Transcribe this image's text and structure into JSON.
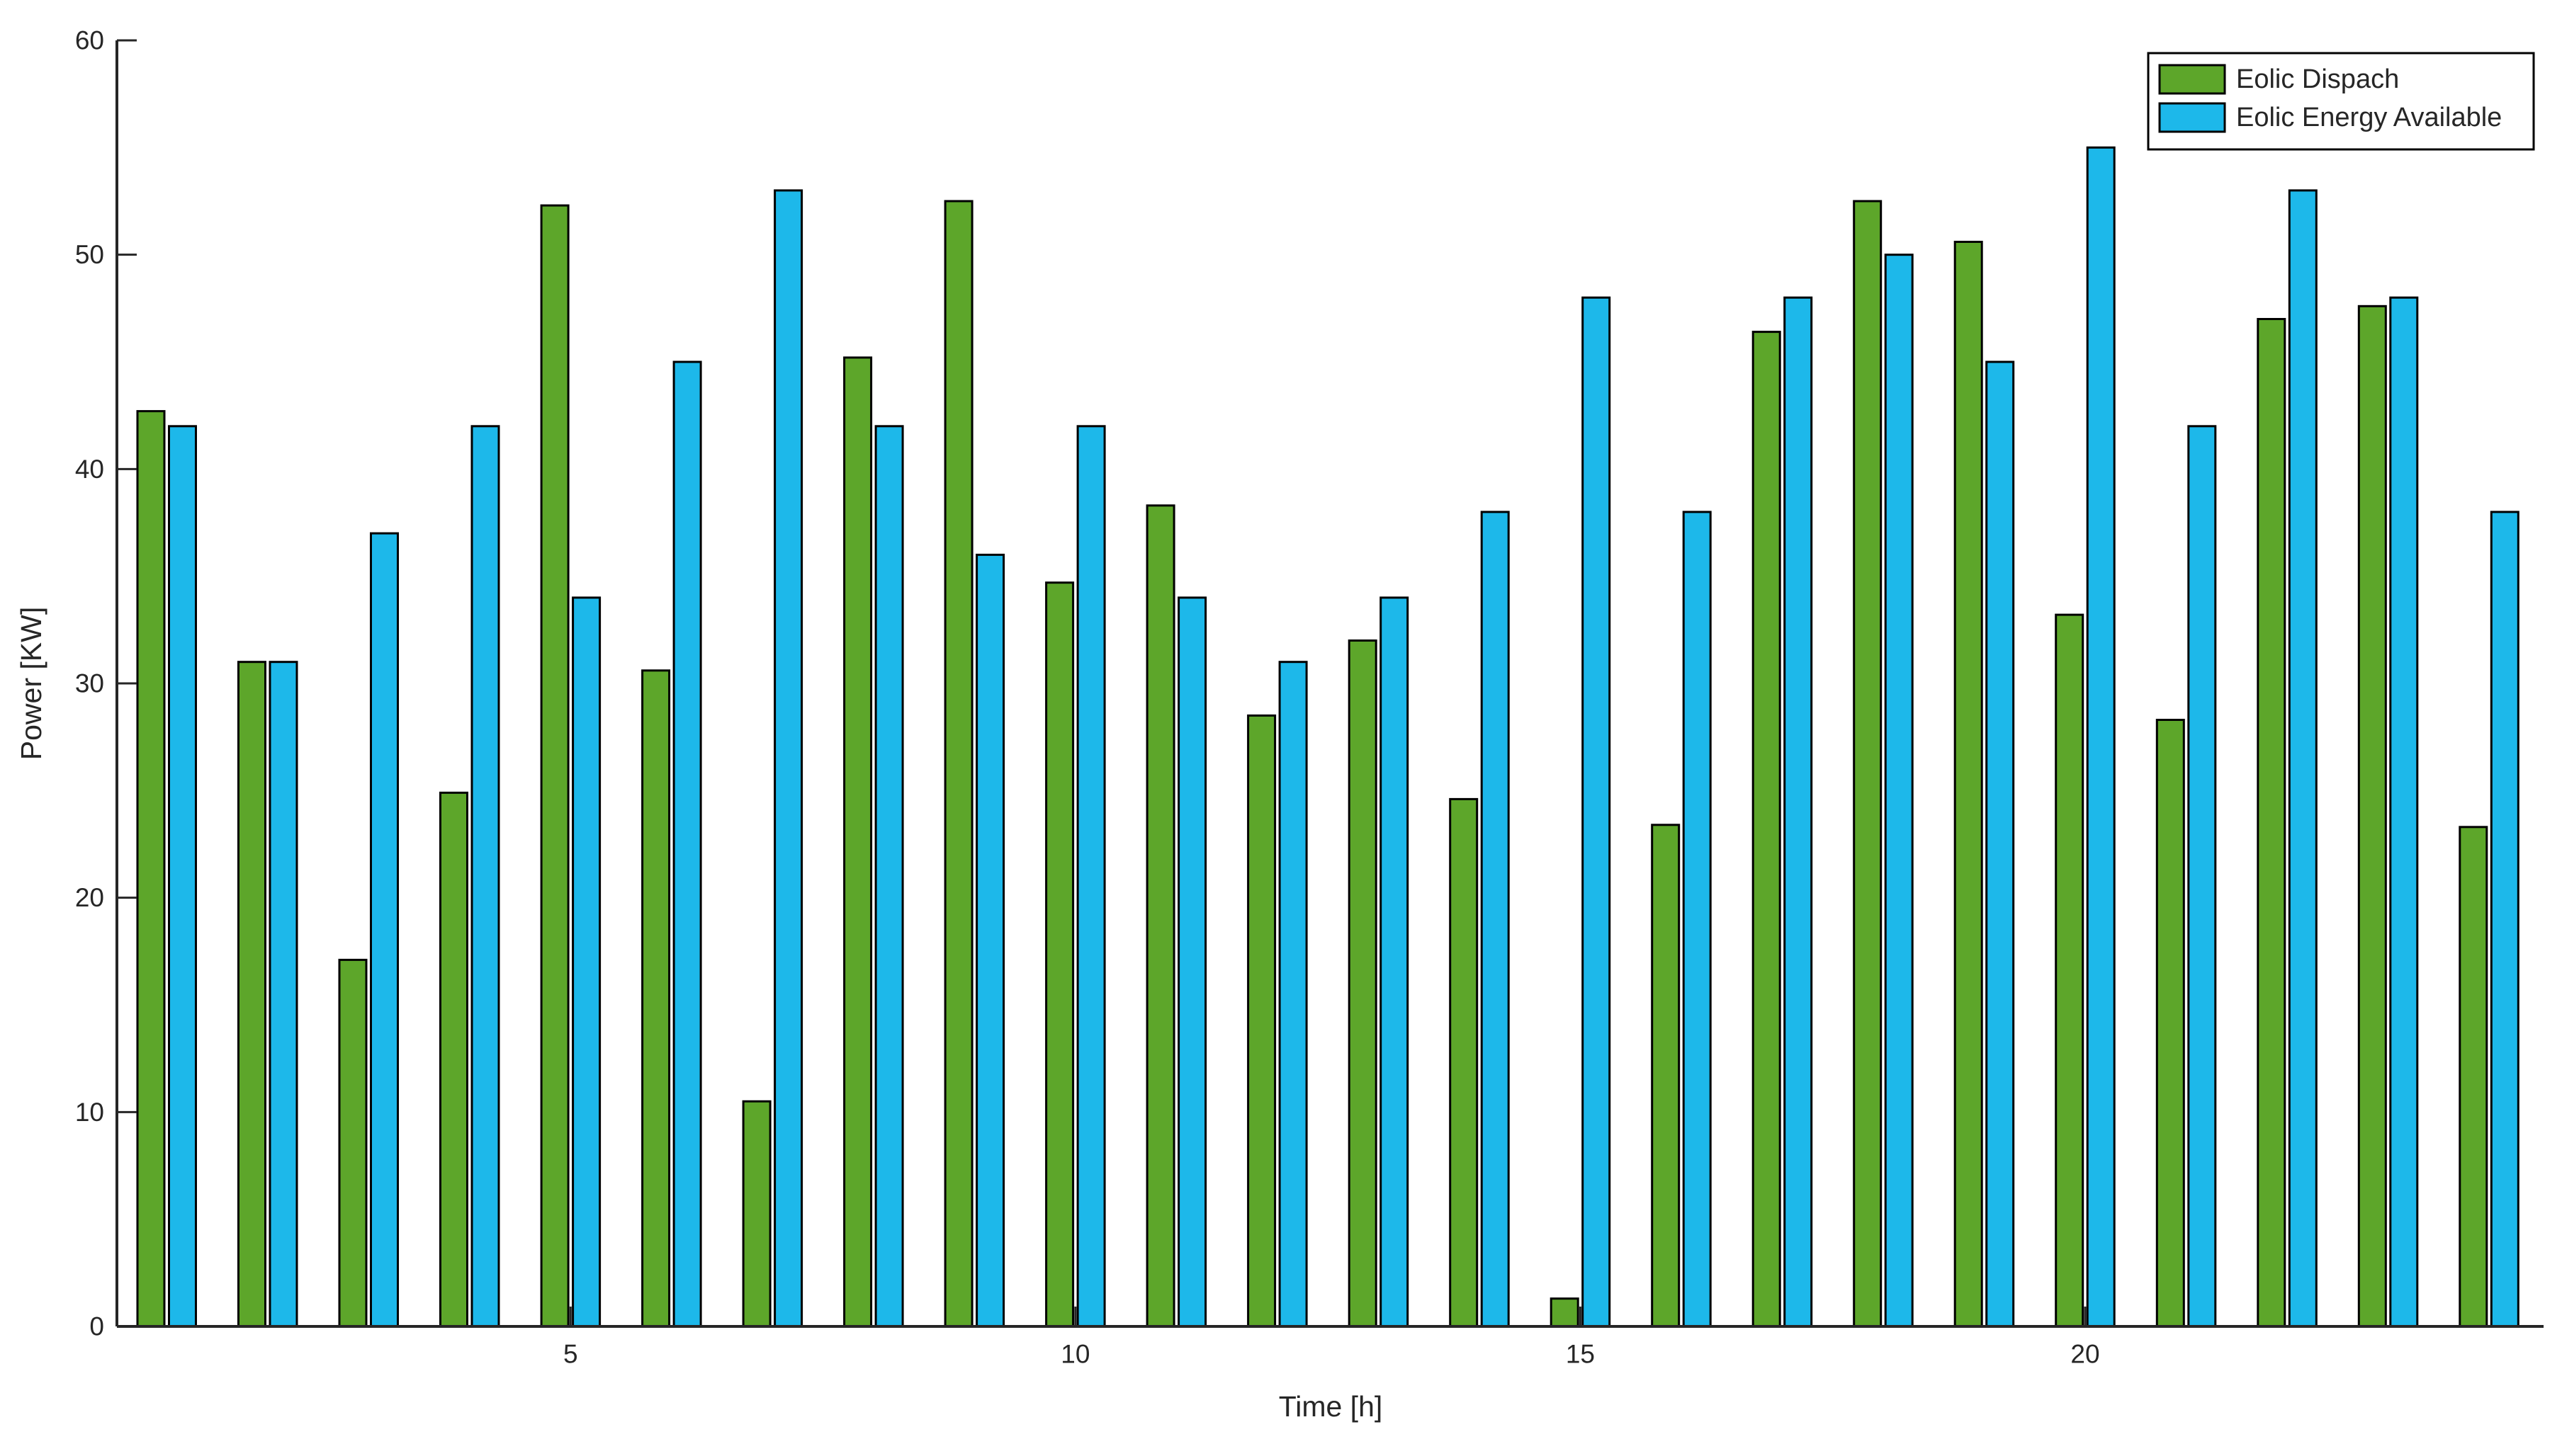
{
  "chart_data": {
    "type": "bar",
    "title": "",
    "xlabel": "Time [h]",
    "ylabel": "Power [KW]",
    "x": [
      1,
      2,
      3,
      4,
      5,
      6,
      7,
      8,
      9,
      10,
      11,
      12,
      13,
      14,
      15,
      16,
      17,
      18,
      19,
      20,
      21,
      22,
      23,
      24
    ],
    "series": [
      {
        "name": "Eolic Dispach",
        "color": "#5da62a",
        "values": [
          42.7,
          31,
          17.1,
          24.9,
          52.3,
          30.6,
          10.5,
          45.2,
          52.5,
          34.7,
          38.3,
          28.5,
          32,
          24.6,
          1.3,
          23.4,
          46.4,
          52.5,
          50.6,
          33.2,
          28.3,
          47,
          47.6,
          23.3
        ]
      },
      {
        "name": "Eolic Energy Available",
        "color": "#1db8ea",
        "values": [
          42,
          31,
          37,
          42,
          34,
          45,
          53,
          42,
          36,
          42,
          34,
          31,
          34,
          38,
          48,
          38,
          48,
          50,
          45,
          55,
          42,
          53,
          48,
          38
        ]
      }
    ],
    "ylim": [
      0,
      60
    ],
    "yticks": [
      0,
      10,
      20,
      30,
      40,
      50,
      60
    ],
    "xticks": [
      5,
      10,
      15,
      20
    ],
    "grid": false,
    "legend_position": "top-right",
    "bar_edge_color": "#000000",
    "axis_color": "#262626",
    "background_color": "#ffffff"
  }
}
